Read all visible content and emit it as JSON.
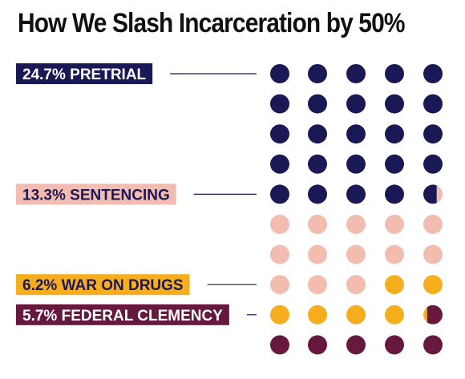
{
  "title": "How We Slash Incarceration by 50%",
  "chart_data": {
    "type": "waffle",
    "title": "How We Slash Incarceration by 50%",
    "grid": {
      "rows": 10,
      "cols": 5
    },
    "categories": [
      {
        "name": "PRETRIAL",
        "value": 24.7,
        "label": "24.7% PRETRIAL",
        "color": "#1b1856",
        "text_color": "#ffffff"
      },
      {
        "name": "SENTENCING",
        "value": 13.3,
        "label": "13.3% SENTENCING",
        "color": "#f3bcb0",
        "text_color": "#1b1856"
      },
      {
        "name": "WAR ON DRUGS",
        "value": 6.2,
        "label": "6.2% WAR ON DRUGS",
        "color": "#f6ad1e",
        "text_color": "#1b1856"
      },
      {
        "name": "FEDERAL CLEMENCY",
        "value": 5.7,
        "label": "5.7% FEDERAL CLEMENCY",
        "color": "#66183d",
        "text_color": "#ffffff"
      }
    ]
  }
}
